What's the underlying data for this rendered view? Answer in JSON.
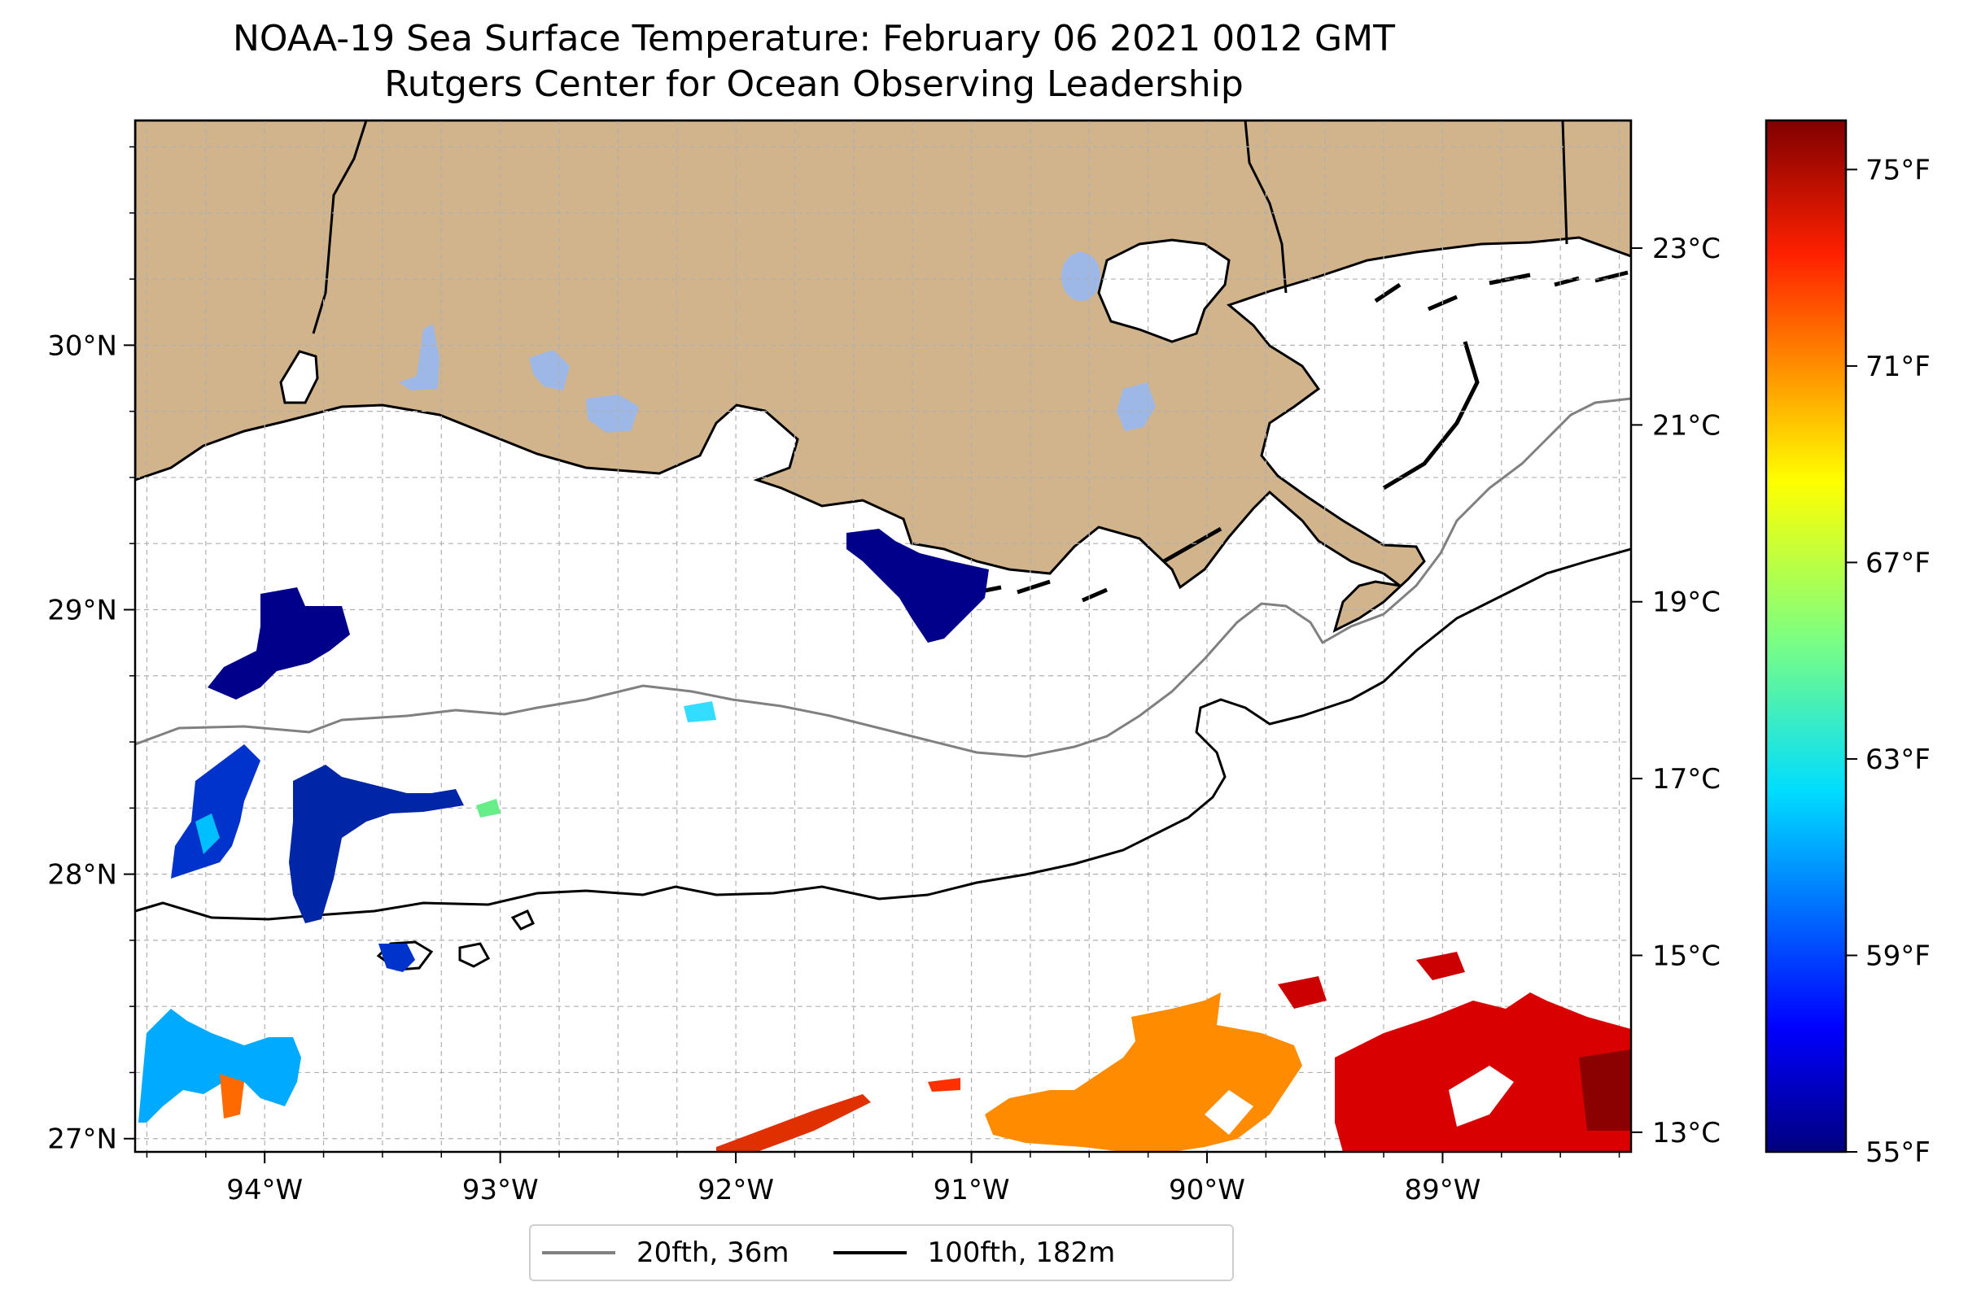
{
  "title": {
    "line1": "NOAA-19 Sea Surface Temperature: February 06 2021 0012 GMT",
    "line2": "Rutgers Center for Ocean Observing Leadership"
  },
  "map": {
    "lon_range": [
      -94.55,
      -88.2
    ],
    "lat_range": [
      26.95,
      30.85
    ],
    "lon_ticks": [
      {
        "value": -94,
        "label": "94°W"
      },
      {
        "value": -93,
        "label": "93°W"
      },
      {
        "value": -92,
        "label": "92°W"
      },
      {
        "value": -91,
        "label": "91°W"
      },
      {
        "value": -90,
        "label": "90°W"
      },
      {
        "value": -89,
        "label": "89°W"
      }
    ],
    "lat_ticks": [
      {
        "value": 30,
        "label": "30°N"
      },
      {
        "value": 29,
        "label": "29°N"
      },
      {
        "value": 28,
        "label": "28°N"
      },
      {
        "value": 27,
        "label": "27°N"
      }
    ],
    "grid": true,
    "colors": {
      "land": "#d2b48c",
      "lakes": "#9db8e6",
      "coastline": "#000000",
      "gridline": "#b0b0b0"
    }
  },
  "colorbar": {
    "colormap": "jet",
    "fahrenheit_ticks": [
      {
        "value": 75,
        "label": "75°F"
      },
      {
        "value": 71,
        "label": "71°F"
      },
      {
        "value": 67,
        "label": "67°F"
      },
      {
        "value": 63,
        "label": "63°F"
      },
      {
        "value": 59,
        "label": "59°F"
      },
      {
        "value": 55,
        "label": "55°F"
      }
    ],
    "celsius_ticks": [
      {
        "value": 23,
        "label": "23°C"
      },
      {
        "value": 21,
        "label": "21°C"
      },
      {
        "value": 19,
        "label": "19°C"
      },
      {
        "value": 17,
        "label": "17°C"
      },
      {
        "value": 15,
        "label": "15°C"
      },
      {
        "value": 13,
        "label": "13°C"
      }
    ],
    "range_f": [
      55,
      76
    ]
  },
  "legend": {
    "items": [
      {
        "label": "20fth, 36m",
        "color": "#808080"
      },
      {
        "label": "100fth, 182m",
        "color": "#000000"
      }
    ]
  }
}
